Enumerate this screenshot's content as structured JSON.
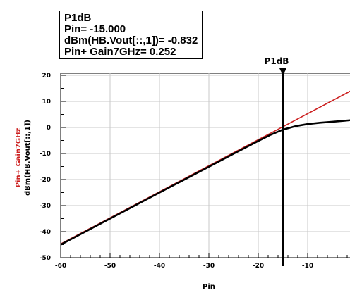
{
  "marker_readout": {
    "name": "P1dB",
    "line_pin": "Pin= -15.000",
    "line_vout": "dBm(HB.Vout[::,1])= -0.832",
    "line_gain": "Pin+ Gain7GHz= 0.252"
  },
  "marker_label": "P1dB",
  "chart_data": {
    "type": "line",
    "xlabel": "Pin",
    "ylabel_lines": [
      "Pin+ Gain7GHz",
      "dBm(HB.Vout[::,1])"
    ],
    "xlim": [
      -60,
      0
    ],
    "ylim": [
      -50,
      20
    ],
    "x_ticks": [
      -60,
      -50,
      -40,
      -30,
      -20,
      -10,
      0
    ],
    "y_ticks": [
      20,
      10,
      0,
      -10,
      -20,
      -30,
      -40,
      -50
    ],
    "grid": true,
    "marker": {
      "name": "P1dB",
      "x": -15
    },
    "series": [
      {
        "name": "Pin+ Gain7GHz",
        "color": "#cc2020",
        "x": [
          -60,
          0
        ],
        "y": [
          -44.7,
          15.3
        ]
      },
      {
        "name": "dBm(HB.Vout[::,1])",
        "color": "#000000",
        "x": [
          -60,
          -50,
          -40,
          -30,
          -25,
          -20,
          -17.5,
          -15,
          -12.5,
          -10,
          -7.5,
          -5,
          -2.5,
          0
        ],
        "y": [
          -45,
          -35,
          -25,
          -15.1,
          -10.1,
          -5.2,
          -2.8,
          -0.83,
          0.5,
          1.3,
          1.8,
          2.2,
          2.6,
          3.0
        ]
      }
    ]
  }
}
